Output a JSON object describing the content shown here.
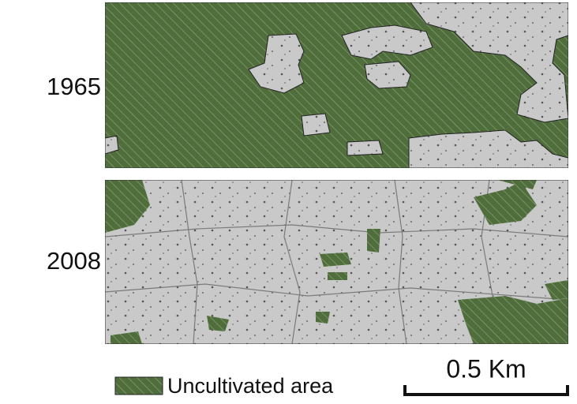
{
  "panels": [
    {
      "year": "1965"
    },
    {
      "year": "2008"
    }
  ],
  "legend": {
    "label": "Uncultivated area"
  },
  "scale_bar": {
    "label": "0.5 Km"
  }
}
